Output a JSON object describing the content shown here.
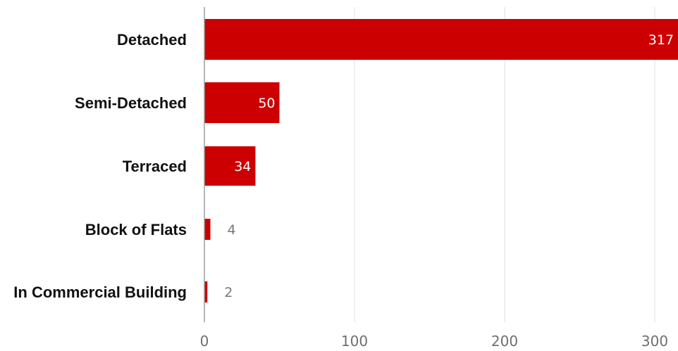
{
  "chart_data": {
    "type": "bar",
    "orientation": "horizontal",
    "categories": [
      "Detached",
      "Semi-Detached",
      "Terraced",
      "Block of Flats",
      "In Commercial Building"
    ],
    "values": [
      317,
      50,
      34,
      4,
      2
    ],
    "xlim": [
      0,
      317
    ],
    "xticks": [
      0,
      100,
      200,
      300
    ],
    "grid": true,
    "data_labels": true,
    "colors": {
      "bar": "#cc0000",
      "grid": "#e0e0e0",
      "axis": "#9e9e9e"
    }
  }
}
